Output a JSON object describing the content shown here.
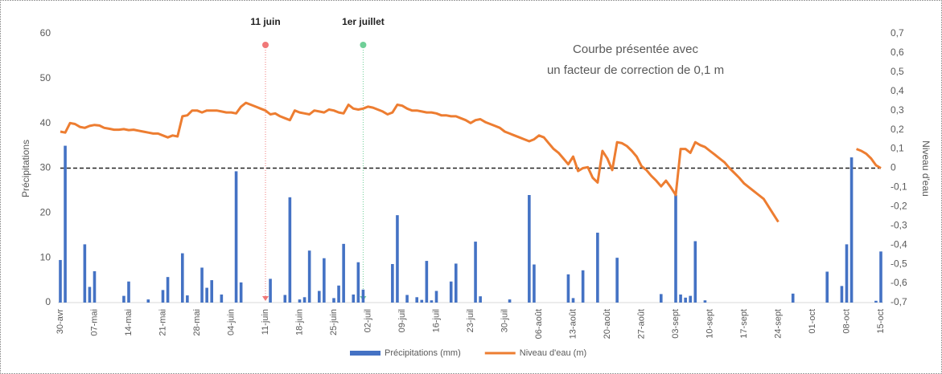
{
  "chart_data": {
    "type": "bar_line",
    "categories": [
      "30-avr",
      null,
      null,
      null,
      null,
      null,
      null,
      "07-mai",
      null,
      null,
      null,
      null,
      null,
      null,
      "14-mai",
      null,
      null,
      null,
      null,
      null,
      null,
      "21-mai",
      null,
      null,
      null,
      null,
      null,
      null,
      "28-mai",
      null,
      null,
      null,
      null,
      null,
      null,
      "04-juin",
      null,
      null,
      null,
      null,
      null,
      null,
      "11-juin",
      null,
      null,
      null,
      null,
      null,
      null,
      "18-juin",
      null,
      null,
      null,
      null,
      null,
      null,
      "25-juin",
      null,
      null,
      null,
      null,
      null,
      null,
      "02-juil",
      null,
      null,
      null,
      null,
      null,
      null,
      "09-juil",
      null,
      null,
      null,
      null,
      null,
      null,
      "16-juil",
      null,
      null,
      null,
      null,
      null,
      null,
      "23-juil",
      null,
      null,
      null,
      null,
      null,
      null,
      "30-juil",
      null,
      null,
      null,
      null,
      null,
      null,
      "06-août",
      null,
      null,
      null,
      null,
      null,
      null,
      "13-août",
      null,
      null,
      null,
      null,
      null,
      null,
      "20-août",
      null,
      null,
      null,
      null,
      null,
      null,
      "27-août",
      null,
      null,
      null,
      null,
      null,
      null,
      "03-sept",
      null,
      null,
      null,
      null,
      null,
      null,
      "10-sept",
      null,
      null,
      null,
      null,
      null,
      null,
      "17-sept",
      null,
      null,
      null,
      null,
      null,
      null,
      "24-sept",
      null,
      null,
      null,
      null,
      null,
      null,
      "01-oct",
      null,
      null,
      null,
      null,
      null,
      null,
      "08-oct",
      null,
      null,
      null,
      null,
      null,
      null,
      "15-oct"
    ],
    "series": [
      {
        "name": "Précipitations (mm)",
        "type": "bar",
        "color": "#4472c4",
        "values": [
          9.5,
          35,
          0,
          0,
          0,
          13,
          3.5,
          7,
          0,
          0,
          0,
          0,
          0,
          1.5,
          4.7,
          0,
          0,
          0,
          0.7,
          0,
          0,
          2.8,
          5.7,
          0,
          0,
          11,
          1.6,
          0,
          0,
          7.8,
          3.3,
          5,
          0,
          1.8,
          0,
          0,
          29.3,
          4.5,
          0,
          0,
          0,
          0,
          0,
          5.3,
          0,
          0,
          1.7,
          23.5,
          0,
          0.7,
          1.2,
          11.6,
          0,
          2.6,
          9.9,
          0,
          1,
          3.8,
          13.1,
          0,
          1.8,
          9,
          2.9,
          0,
          0,
          0,
          0,
          0,
          8.6,
          19.5,
          0,
          1.7,
          0,
          1.2,
          0.6,
          9.3,
          0.5,
          2.6,
          0,
          0,
          4.7,
          8.7,
          0,
          0,
          0,
          13.6,
          1.4,
          0,
          0,
          0,
          0,
          0,
          0.7,
          0,
          0,
          0,
          24,
          8.5,
          0,
          0,
          0,
          0,
          0,
          0,
          6.3,
          1,
          0,
          7.2,
          0,
          0,
          15.6,
          0,
          0,
          0,
          10,
          0,
          0,
          0,
          0,
          0,
          0,
          0,
          0,
          1.9,
          0,
          0,
          24,
          1.8,
          1.1,
          1.5,
          13.7,
          0,
          0.5,
          0,
          0,
          0,
          0,
          0,
          0,
          0,
          0,
          0,
          0,
          0,
          0,
          0,
          0,
          0,
          0,
          0,
          2,
          0,
          0,
          0,
          0,
          0,
          0,
          6.9,
          0,
          0,
          3.7,
          13,
          32.4,
          0,
          0,
          0,
          0,
          0.4,
          11.4
        ]
      },
      {
        "name": "Niveau d'eau (m)",
        "type": "line",
        "axis": "y2",
        "color": "#ed7d31",
        "values": [
          0.19,
          0.185,
          0.235,
          0.23,
          0.215,
          0.21,
          0.22,
          0.225,
          0.222,
          0.21,
          0.205,
          0.2,
          0.2,
          0.203,
          0.198,
          0.2,
          0.195,
          0.19,
          0.185,
          0.18,
          0.18,
          0.17,
          0.16,
          0.17,
          0.165,
          0.27,
          0.275,
          0.3,
          0.3,
          0.29,
          0.3,
          0.3,
          0.3,
          0.295,
          0.29,
          0.29,
          0.285,
          0.32,
          0.34,
          0.33,
          0.32,
          0.31,
          0.3,
          0.28,
          0.285,
          0.27,
          0.26,
          0.25,
          0.3,
          0.29,
          0.285,
          0.28,
          0.3,
          0.295,
          0.29,
          0.305,
          0.3,
          0.29,
          0.285,
          0.33,
          0.31,
          0.305,
          0.31,
          0.32,
          0.315,
          0.305,
          0.295,
          0.28,
          0.29,
          0.33,
          0.325,
          0.31,
          0.3,
          0.3,
          0.295,
          0.29,
          0.29,
          0.285,
          0.275,
          0.275,
          0.27,
          0.27,
          0.26,
          0.25,
          0.235,
          0.25,
          0.255,
          0.24,
          0.23,
          0.22,
          0.21,
          0.19,
          0.18,
          0.17,
          0.16,
          0.15,
          0.14,
          0.15,
          0.17,
          0.16,
          0.13,
          0.1,
          0.08,
          0.05,
          0.02,
          0.06,
          -0.015,
          0.0,
          0.005,
          -0.05,
          -0.075,
          0.09,
          0.05,
          -0.01,
          0.135,
          0.13,
          0.115,
          0.09,
          0.06,
          0.01,
          -0.01,
          -0.04,
          -0.065,
          -0.095,
          -0.065,
          -0.1,
          -0.14,
          0.1,
          0.1,
          0.08,
          0.135,
          0.12,
          0.11,
          0.09,
          0.07,
          0.05,
          0.03,
          0.0,
          -0.025,
          -0.05,
          -0.08,
          -0.1,
          -0.12,
          -0.14,
          -0.16,
          -0.2,
          -0.24,
          -0.28,
          null,
          null,
          null,
          null,
          null,
          null,
          null,
          null,
          null,
          null,
          null,
          null,
          null,
          null,
          null,
          0.1,
          0.09,
          0.075,
          0.05,
          0.015,
          0.0
        ]
      }
    ],
    "ylabel": "Précipitations",
    "y2label": "Niveau d'eau",
    "ylim": [
      0,
      60
    ],
    "yticks": [
      0,
      10,
      20,
      30,
      40,
      50,
      60
    ],
    "y2lim": [
      -0.7,
      0.7
    ],
    "y2ticks": [
      {
        "value": -0.7,
        "label": "-0,7"
      },
      {
        "value": -0.6,
        "label": "-0,6"
      },
      {
        "value": -0.5,
        "label": "-0,5"
      },
      {
        "value": -0.4,
        "label": "-0,4"
      },
      {
        "value": -0.3,
        "label": "-0,3"
      },
      {
        "value": -0.2,
        "label": "-0,2"
      },
      {
        "value": -0.1,
        "label": "-0,1"
      },
      0,
      {
        "value": 0.1,
        "label": "0,1"
      },
      {
        "value": 0.2,
        "label": "0,2"
      },
      {
        "value": 0.3,
        "label": "0,3"
      },
      {
        "value": 0.4,
        "label": "0,4"
      },
      {
        "value": 0.5,
        "label": "0,5"
      },
      {
        "value": 0.6,
        "label": "0,6"
      },
      {
        "value": 0.7,
        "label": "0,7"
      }
    ],
    "reference_line": {
      "axis": "y2",
      "value": 0
    },
    "markers": [
      {
        "text": "11 juin",
        "index": 42,
        "color": "#f07878"
      },
      {
        "text": "1er juillet",
        "index": 62,
        "color": "#6fcf97"
      }
    ],
    "annotation": [
      "Courbe présentée avec",
      "un facteur de correction de 0,1 m"
    ],
    "grid": false,
    "legend": "bottom"
  }
}
